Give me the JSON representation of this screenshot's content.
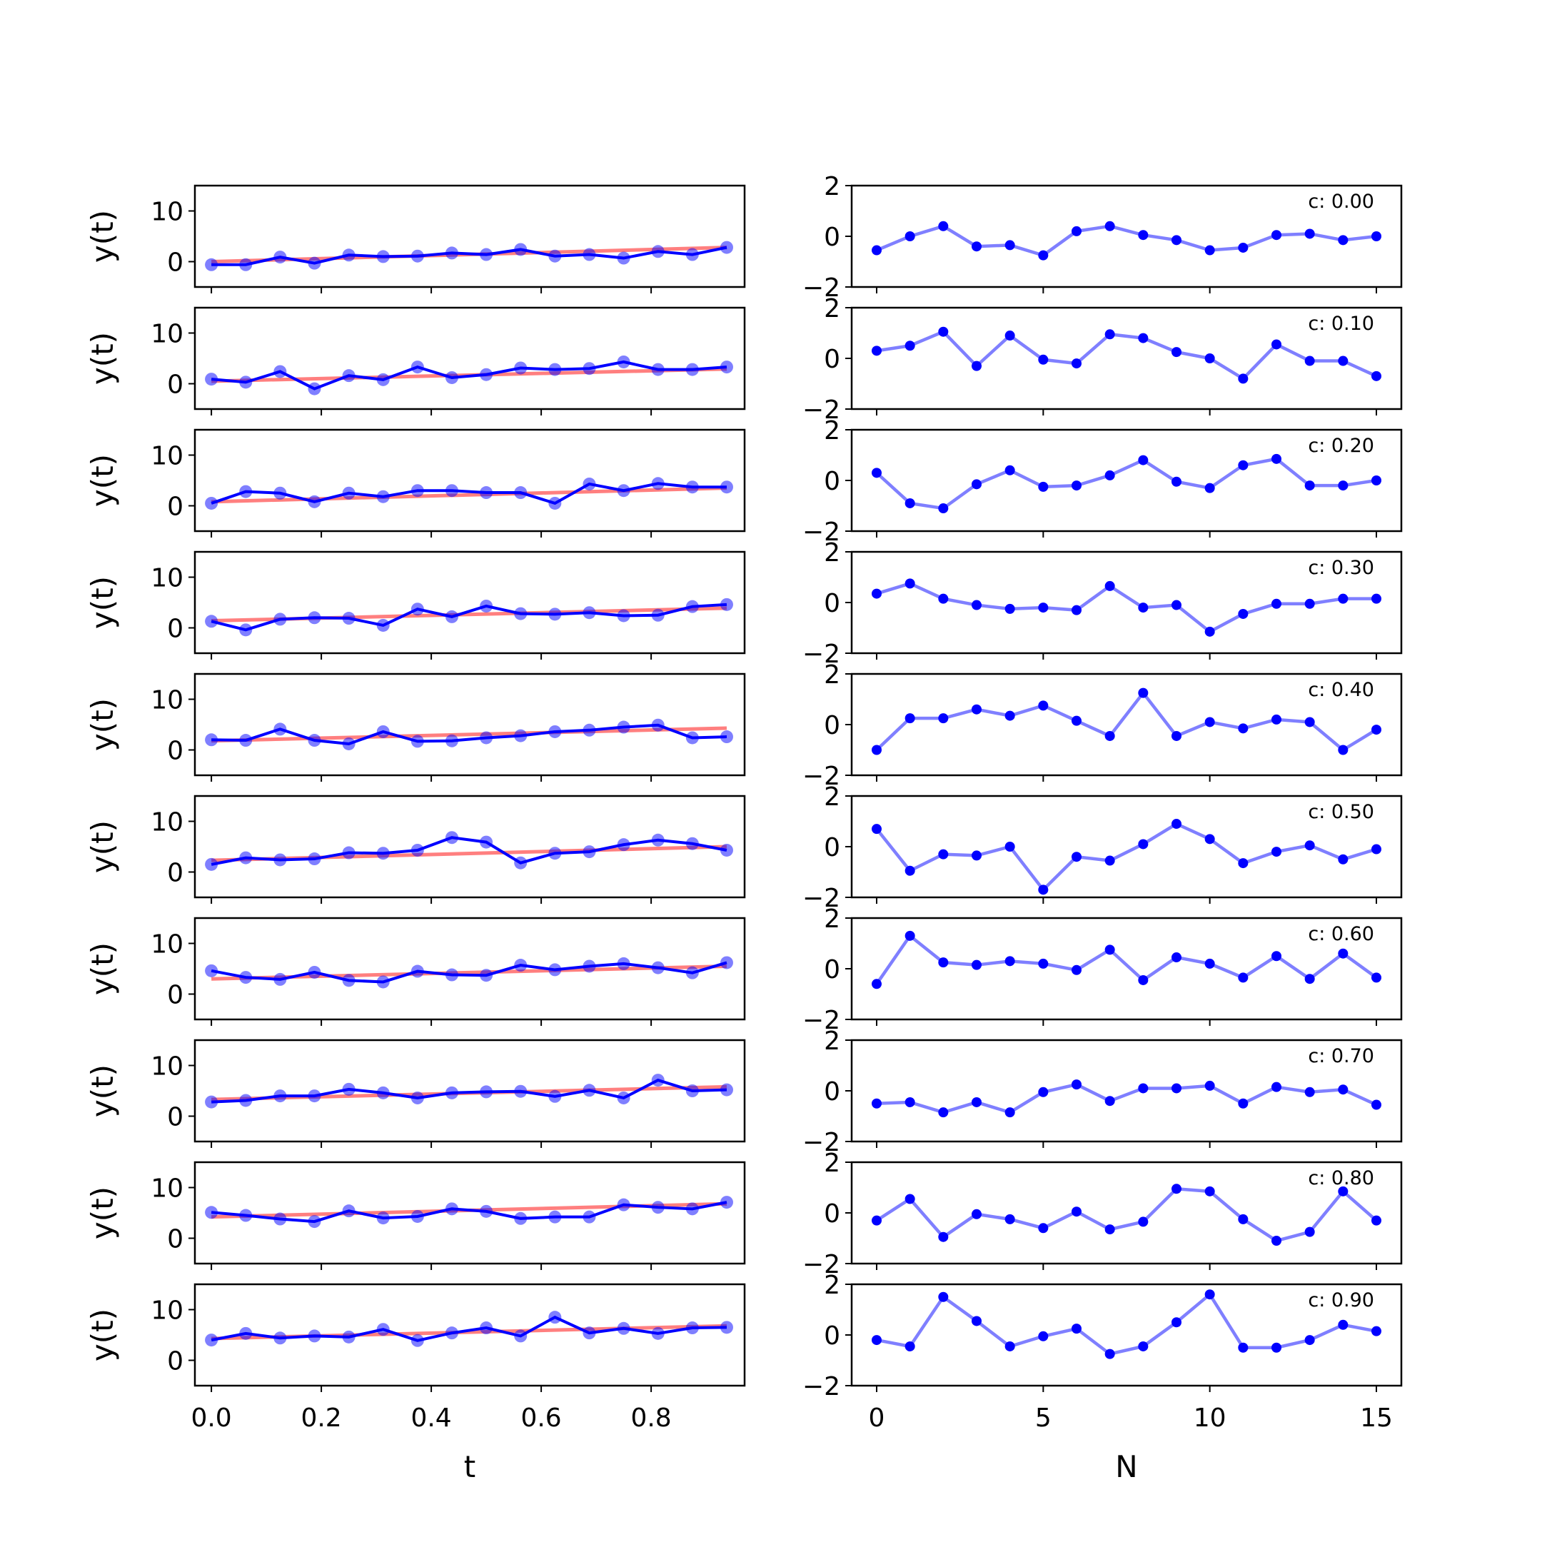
{
  "chart_data": [
    {
      "type": "line",
      "panel": "left",
      "xlabel": "t",
      "ylabel": "y(t)",
      "xlim": [
        -0.03,
        0.97
      ],
      "ylim": [
        -5,
        15
      ],
      "xticks": [
        0.0,
        0.2,
        0.4,
        0.6,
        0.8
      ],
      "xtick_labels": [
        "0.0",
        "0.2",
        "0.4",
        "0.6",
        "0.8"
      ],
      "yticks": [
        0,
        10
      ],
      "ytick_labels": [
        "0",
        "10"
      ],
      "grid": false,
      "x": [
        0.0,
        0.0625,
        0.125,
        0.1875,
        0.25,
        0.3125,
        0.375,
        0.4375,
        0.5,
        0.5625,
        0.625,
        0.6875,
        0.75,
        0.8125,
        0.875,
        0.9375
      ],
      "colors": {
        "data": "#0000ff",
        "fit": "#ff0000"
      },
      "rows": [
        {
          "y": [
            -0.6,
            -0.6,
            0.9,
            -0.3,
            1.3,
            1.0,
            1.1,
            1.7,
            1.4,
            2.4,
            1.1,
            1.4,
            0.7,
            2.0,
            1.4,
            2.8
          ],
          "fit": [
            0.0,
            2.8
          ]
        },
        {
          "y": [
            0.9,
            0.3,
            2.4,
            -1.0,
            1.6,
            0.8,
            3.3,
            1.2,
            1.8,
            3.1,
            2.8,
            3.0,
            4.3,
            2.8,
            2.8,
            3.3
          ],
          "fit": [
            0.5,
            2.9
          ]
        },
        {
          "y": [
            0.5,
            2.8,
            2.5,
            0.8,
            2.5,
            1.8,
            3.0,
            3.0,
            2.6,
            2.6,
            0.5,
            4.3,
            3.0,
            4.4,
            3.7,
            3.7
          ],
          "fit": [
            0.8,
            3.5
          ]
        },
        {
          "y": [
            1.3,
            -0.4,
            1.7,
            2.0,
            1.9,
            0.5,
            3.7,
            2.2,
            4.3,
            2.8,
            2.7,
            3.0,
            2.4,
            2.5,
            4.2,
            4.6
          ],
          "fit": [
            1.4,
            3.9
          ]
        },
        {
          "y": [
            2.0,
            1.9,
            4.1,
            1.9,
            1.2,
            3.6,
            1.7,
            1.8,
            2.4,
            2.8,
            3.6,
            3.9,
            4.5,
            4.9,
            2.4,
            2.6
          ],
          "fit": [
            1.8,
            4.3
          ]
        },
        {
          "y": [
            1.5,
            2.8,
            2.4,
            2.6,
            3.8,
            3.7,
            4.3,
            6.8,
            5.9,
            1.8,
            3.7,
            4.0,
            5.4,
            6.3,
            5.6,
            4.3
          ],
          "fit": [
            2.3,
            5.0
          ]
        },
        {
          "y": [
            4.6,
            3.3,
            2.9,
            4.3,
            2.7,
            2.4,
            4.5,
            3.8,
            3.7,
            5.7,
            4.8,
            5.5,
            6.0,
            5.2,
            4.2,
            6.2
          ],
          "fit": [
            3.0,
            5.5
          ]
        },
        {
          "y": [
            2.8,
            3.1,
            4.0,
            4.0,
            5.3,
            4.6,
            3.6,
            4.6,
            4.8,
            4.9,
            3.9,
            5.1,
            3.6,
            7.1,
            5.0,
            5.2
          ],
          "fit": [
            3.3,
            5.8
          ]
        },
        {
          "y": [
            5.1,
            4.5,
            3.8,
            3.3,
            5.4,
            4.0,
            4.3,
            5.8,
            5.3,
            3.9,
            4.2,
            4.2,
            6.6,
            6.1,
            5.8,
            7.1
          ],
          "fit": [
            4.2,
            6.8
          ]
        },
        {
          "y": [
            4.0,
            5.3,
            4.4,
            4.8,
            4.6,
            6.1,
            3.9,
            5.4,
            6.4,
            4.8,
            8.5,
            5.4,
            6.3,
            5.3,
            6.4,
            6.5
          ],
          "fit": [
            4.3,
            6.8
          ]
        }
      ]
    },
    {
      "type": "line",
      "panel": "right",
      "xlabel": "N",
      "ylim": [
        -2,
        2
      ],
      "xlim": [
        -0.75,
        15.75
      ],
      "xticks": [
        0,
        5,
        10,
        15
      ],
      "xtick_labels": [
        "0",
        "5",
        "10",
        "15"
      ],
      "yticks": [
        -2,
        0,
        2
      ],
      "ytick_labels": [
        "−2",
        "0",
        "2"
      ],
      "grid": false,
      "x": [
        0,
        1,
        2,
        3,
        4,
        5,
        6,
        7,
        8,
        9,
        10,
        11,
        12,
        13,
        14,
        15
      ],
      "colors": {
        "line": "#0000ff"
      },
      "rows": [
        {
          "label": "c: 0.00",
          "y": [
            -0.55,
            0.0,
            0.4,
            -0.4,
            -0.35,
            -0.75,
            0.2,
            0.4,
            0.05,
            -0.15,
            -0.55,
            -0.45,
            0.05,
            0.1,
            -0.15,
            0.0
          ]
        },
        {
          "label": "c: 0.10",
          "y": [
            0.3,
            0.5,
            1.05,
            -0.3,
            0.9,
            -0.05,
            -0.2,
            0.95,
            0.8,
            0.25,
            0.0,
            -0.8,
            0.55,
            -0.1,
            -0.1,
            -0.7
          ]
        },
        {
          "label": "c: 0.20",
          "y": [
            0.3,
            -0.9,
            -1.1,
            -0.15,
            0.4,
            -0.25,
            -0.2,
            0.2,
            0.8,
            -0.05,
            -0.3,
            0.6,
            0.85,
            -0.2,
            -0.2,
            0.0
          ]
        },
        {
          "label": "c: 0.30",
          "y": [
            0.35,
            0.75,
            0.15,
            -0.1,
            -0.25,
            -0.2,
            -0.3,
            0.65,
            -0.2,
            -0.1,
            -1.15,
            -0.45,
            -0.05,
            -0.05,
            0.15,
            0.15
          ]
        },
        {
          "label": "c: 0.40",
          "y": [
            -1.0,
            0.25,
            0.25,
            0.6,
            0.35,
            0.75,
            0.15,
            -0.45,
            1.25,
            -0.45,
            0.1,
            -0.15,
            0.2,
            0.1,
            -1.0,
            -0.2
          ]
        },
        {
          "label": "c: 0.50",
          "y": [
            0.7,
            -0.95,
            -0.3,
            -0.35,
            0.0,
            -1.7,
            -0.4,
            -0.55,
            0.1,
            0.9,
            0.3,
            -0.65,
            -0.2,
            0.05,
            -0.5,
            -0.1
          ]
        },
        {
          "label": "c: 0.60",
          "y": [
            -0.6,
            1.3,
            0.25,
            0.15,
            0.3,
            0.2,
            -0.05,
            0.75,
            -0.45,
            0.45,
            0.2,
            -0.35,
            0.5,
            -0.4,
            0.6,
            -0.35
          ]
        },
        {
          "label": "c: 0.70",
          "y": [
            -0.5,
            -0.45,
            -0.85,
            -0.45,
            -0.85,
            -0.05,
            0.25,
            -0.4,
            0.1,
            0.1,
            0.2,
            -0.5,
            0.15,
            -0.05,
            0.05,
            -0.55
          ]
        },
        {
          "label": "c: 0.80",
          "y": [
            -0.3,
            0.55,
            -0.95,
            -0.05,
            -0.25,
            -0.6,
            0.05,
            -0.65,
            -0.35,
            0.95,
            0.85,
            -0.25,
            -1.1,
            -0.75,
            0.85,
            -0.3
          ]
        },
        {
          "label": "c: 0.90",
          "y": [
            -0.2,
            -0.45,
            1.5,
            0.55,
            -0.45,
            -0.05,
            0.25,
            -0.75,
            -0.45,
            0.5,
            1.6,
            -0.5,
            -0.5,
            -0.2,
            0.4,
            0.15
          ]
        }
      ]
    }
  ]
}
